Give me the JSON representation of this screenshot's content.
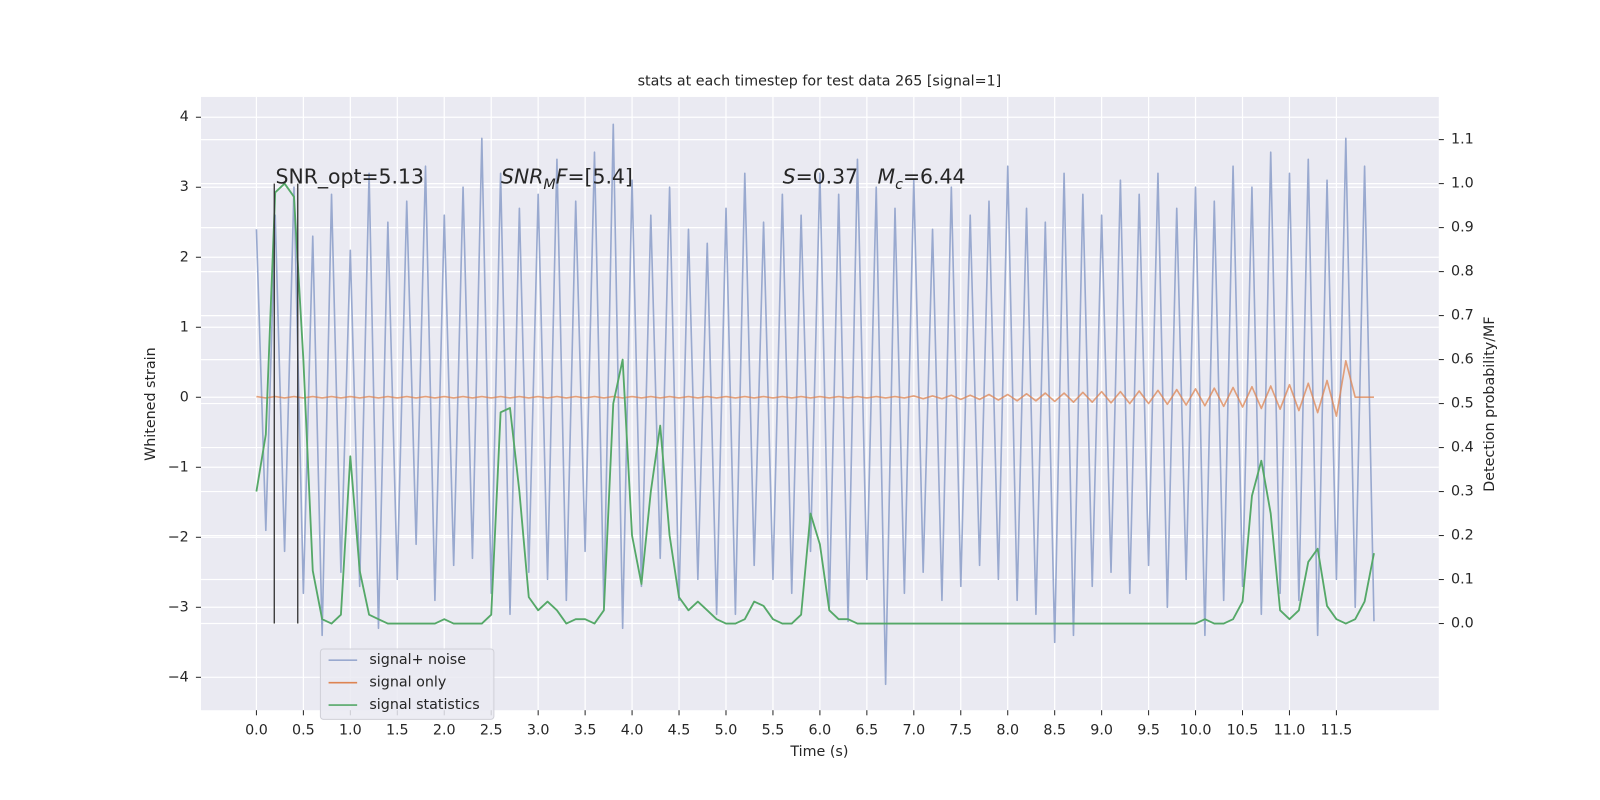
{
  "chart_data": {
    "type": "line",
    "title": "stats at each timestep for test data 265 [signal=1]",
    "xlabel": "Time (s)",
    "ylabel": "Whitened strain",
    "y2label": "Detection probability/MF",
    "grid": true,
    "legend": "lower left",
    "xlim": [
      -0.59,
      12.59
    ],
    "ylim": [
      -4.47,
      4.29
    ],
    "y2lim": [
      -0.197,
      1.197
    ],
    "xticks": [
      {
        "value": 0,
        "label": "0.0"
      },
      0.5,
      {
        "value": 1,
        "label": "1.0"
      },
      1.5,
      {
        "value": 2,
        "label": "2.0"
      },
      2.5,
      {
        "value": 3,
        "label": "3.0"
      },
      3.5,
      {
        "value": 4,
        "label": "4.0"
      },
      4.5,
      {
        "value": 5,
        "label": "5.0"
      },
      5.5,
      {
        "value": 6,
        "label": "6.0"
      },
      6.5,
      {
        "value": 7,
        "label": "7.0"
      },
      7.5,
      {
        "value": 8,
        "label": "8.0"
      },
      8.5,
      {
        "value": 9,
        "label": "9.0"
      },
      9.5,
      {
        "value": 10,
        "label": "10.0"
      },
      10.5,
      {
        "value": 11,
        "label": "11.0"
      },
      11.5
    ],
    "yticks": [
      {
        "value": -4,
        "label": "−4"
      },
      {
        "value": -3,
        "label": "−3"
      },
      {
        "value": -2,
        "label": "−2"
      },
      {
        "value": -1,
        "label": "−1"
      },
      0,
      1,
      2,
      3,
      4
    ],
    "y2ticks": [
      {
        "value": 0,
        "label": "0.0"
      },
      0.1,
      0.2,
      0.3,
      0.4,
      0.5,
      0.6,
      0.7,
      0.8,
      0.9,
      {
        "value": 1,
        "label": "1.0"
      },
      1.1
    ],
    "annotations": [
      [
        "SNR_opt=5.13"
      ],
      [
        "SNR",
        "M",
        "F",
        "=[5.4]"
      ],
      [
        "S",
        "=0.37   ",
        "M",
        "c",
        "=6.44"
      ]
    ],
    "vlines": {
      "x": [
        0.19,
        0.44
      ],
      "ymin": 0,
      "ymax": 1,
      "axis": "y2",
      "color": "#333333"
    },
    "x": [
      0,
      0.1,
      0.2,
      0.3,
      0.4,
      0.5,
      0.6,
      0.7,
      0.8,
      0.9,
      1,
      1.1,
      1.2,
      1.3,
      1.4,
      1.5,
      1.6,
      1.7,
      1.8,
      1.9,
      2,
      2.1,
      2.2,
      2.3,
      2.4,
      2.5,
      2.6,
      2.7,
      2.8,
      2.9,
      3,
      3.1,
      3.2,
      3.3,
      3.4,
      3.5,
      3.6,
      3.7,
      3.8,
      3.9,
      4,
      4.1,
      4.2,
      4.3,
      4.4,
      4.5,
      4.6,
      4.7,
      4.8,
      4.9,
      5,
      5.1,
      5.2,
      5.3,
      5.4,
      5.5,
      5.6,
      5.7,
      5.8,
      5.9,
      6,
      6.1,
      6.2,
      6.3,
      6.4,
      6.5,
      6.6,
      6.7,
      6.8,
      6.9,
      7,
      7.1,
      7.2,
      7.3,
      7.4,
      7.5,
      7.6,
      7.7,
      7.8,
      7.9,
      8,
      8.1,
      8.2,
      8.3,
      8.4,
      8.5,
      8.6,
      8.7,
      8.8,
      8.9,
      9,
      9.1,
      9.2,
      9.3,
      9.4,
      9.5,
      9.6,
      9.7,
      9.8,
      9.9,
      10,
      10.1,
      10.2,
      10.3,
      10.4,
      10.5,
      10.6,
      10.7,
      10.8,
      10.9,
      11,
      11.1,
      11.2,
      11.3,
      11.4,
      11.5,
      11.6,
      11.7,
      11.8,
      11.9
    ],
    "series": [
      {
        "name": "signal+ noise",
        "color": "#99a9cf",
        "values": [
          2.4,
          -1.9,
          2.6,
          -2.2,
          3.0,
          -2.8,
          2.3,
          -3.4,
          2.9,
          -2.5,
          2.1,
          -2.7,
          3.2,
          -3.3,
          2.5,
          -2.6,
          2.8,
          -2.1,
          3.3,
          -2.9,
          2.6,
          -2.4,
          3.0,
          -2.3,
          3.7,
          -2.8,
          3.2,
          -3.1,
          2.7,
          -2.5,
          2.9,
          -2.6,
          3.4,
          -2.9,
          2.8,
          -2.2,
          3.5,
          -3.0,
          3.9,
          -3.3,
          3.1,
          -2.7,
          2.6,
          -2.3,
          3.0,
          -2.9,
          2.4,
          -2.6,
          2.2,
          -3.1,
          2.7,
          -3.1,
          3.2,
          -2.4,
          2.5,
          -2.6,
          2.9,
          -2.8,
          2.6,
          -2.2,
          3.2,
          -3.0,
          2.9,
          -3.2,
          3.4,
          -2.6,
          3.0,
          -4.1,
          2.7,
          -2.8,
          3.1,
          -2.5,
          2.4,
          -2.9,
          3.0,
          -2.7,
          2.6,
          -2.4,
          2.8,
          -2.6,
          3.3,
          -2.9,
          2.7,
          -3.1,
          2.5,
          -3.5,
          3.2,
          -3.4,
          2.9,
          -2.7,
          2.6,
          -2.5,
          3.1,
          -2.8,
          2.9,
          -2.4,
          3.2,
          -3.0,
          2.7,
          -2.6,
          3.0,
          -3.4,
          2.8,
          -2.9,
          3.3,
          -2.7,
          3.0,
          -3.1,
          3.5,
          -2.8,
          3.2,
          -2.9,
          3.4,
          -3.4,
          3.1,
          -2.6,
          3.7,
          -3.0,
          3.3,
          -3.2
        ]
      },
      {
        "name": "signal only",
        "color": "#dd8452",
        "values": [
          0.01,
          -0.01,
          0.01,
          -0.01,
          0.01,
          -0.01,
          0.01,
          -0.01,
          0.01,
          -0.01,
          0.01,
          -0.01,
          0.01,
          -0.01,
          0.01,
          -0.01,
          0.01,
          -0.01,
          0.01,
          -0.01,
          0.01,
          -0.01,
          0.01,
          -0.01,
          0.01,
          -0.01,
          0.01,
          -0.01,
          0.01,
          -0.01,
          0.01,
          -0.01,
          0.01,
          -0.01,
          0.01,
          -0.01,
          0.01,
          -0.01,
          0.01,
          -0.01,
          0.01,
          -0.01,
          0.01,
          -0.01,
          0.01,
          -0.01,
          0.01,
          -0.01,
          0.01,
          -0.01,
          0.01,
          -0.01,
          0.01,
          -0.01,
          0.01,
          -0.01,
          0.01,
          -0.01,
          0.01,
          -0.01,
          0.01,
          -0.01,
          0.01,
          -0.01,
          0.01,
          -0.01,
          0.01,
          -0.01,
          0.01,
          -0.01,
          0.02,
          -0.02,
          0.02,
          -0.02,
          0.03,
          -0.03,
          0.03,
          -0.03,
          0.04,
          -0.04,
          0.04,
          -0.05,
          0.05,
          -0.05,
          0.06,
          -0.06,
          0.06,
          -0.07,
          0.07,
          -0.07,
          0.08,
          -0.08,
          0.08,
          -0.09,
          0.09,
          -0.09,
          0.1,
          -0.1,
          0.11,
          -0.11,
          0.12,
          -0.12,
          0.13,
          -0.13,
          0.14,
          -0.14,
          0.15,
          -0.16,
          0.16,
          -0.17,
          0.18,
          -0.19,
          0.2,
          -0.22,
          0.24,
          -0.27,
          0.52,
          0,
          0,
          0
        ]
      },
      {
        "name": "signal statistics",
        "color": "#55a868",
        "axis": "y2",
        "values": [
          0.3,
          0.43,
          0.98,
          1.0,
          0.97,
          0.6,
          0.12,
          0.01,
          0.0,
          0.02,
          0.38,
          0.12,
          0.02,
          0.01,
          0.0,
          0.0,
          0.0,
          0.0,
          0.0,
          0.0,
          0.01,
          0.0,
          0.0,
          0.0,
          0.0,
          0.02,
          0.48,
          0.49,
          0.3,
          0.06,
          0.03,
          0.05,
          0.03,
          0.0,
          0.01,
          0.01,
          0.0,
          0.03,
          0.5,
          0.6,
          0.2,
          0.09,
          0.3,
          0.45,
          0.2,
          0.06,
          0.03,
          0.05,
          0.03,
          0.01,
          0.0,
          0.0,
          0.01,
          0.05,
          0.04,
          0.01,
          0.0,
          0.0,
          0.02,
          0.25,
          0.18,
          0.03,
          0.01,
          0.01,
          0.0,
          0.0,
          0.0,
          0.0,
          0.0,
          0.0,
          0,
          0,
          0,
          0,
          0,
          0,
          0,
          0,
          0,
          0,
          0,
          0,
          0,
          0,
          0,
          0,
          0,
          0,
          0,
          0,
          0,
          0,
          0,
          0,
          0,
          0,
          0,
          0,
          0,
          0,
          0.0,
          0.01,
          0.0,
          0.0,
          0.01,
          0.05,
          0.29,
          0.37,
          0.25,
          0.03,
          0.01,
          0.03,
          0.14,
          0.17,
          0.04,
          0.01,
          0.0,
          0.01,
          0.05,
          0.16
        ]
      }
    ]
  }
}
